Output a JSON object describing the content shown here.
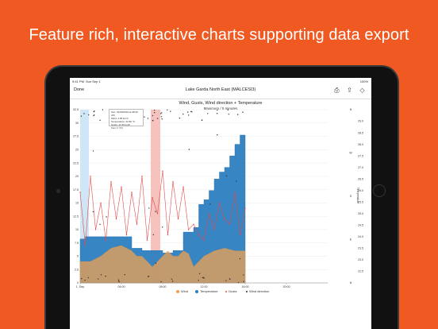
{
  "headline": "Feature rich, interactive charts supporting data export",
  "status": {
    "time": "9:41 PM",
    "date": "Sun Sep 1",
    "battery": "100%"
  },
  "nav": {
    "done_label": "Done",
    "title": "Lake Garda North East (MALCESI3)"
  },
  "chart": {
    "title": "Wind, Gusts, Wind direction + Temperature",
    "subtitle": "Maximum / 5 minutes"
  },
  "tooltip": {
    "time": "Sun, 01/09/2019 at 08:20 AM",
    "lines": [
      "Wind: 4.86 km/h",
      "Temperature: 22.80 °C",
      "Gusts: 11.56 km/h",
      "from 1° (N)"
    ]
  },
  "legend": {
    "items": [
      "Wind",
      "Temperature",
      "Gusts",
      "Wind direction"
    ]
  },
  "colors": {
    "wind": "#f0a050",
    "temperature": "#2c7fc0",
    "gusts": "#e34a4a",
    "direction": "#333333",
    "highlight_blue": "#cfe6f7",
    "highlight_red": "#f6c2bd",
    "brand": "#f05a22"
  },
  "chart_data": {
    "type": "line",
    "title": "Wind, Gusts, Wind direction + Temperature",
    "subtitle": "Maximum / 5 minutes",
    "x_ticks": [
      "1. Sep",
      "04:00",
      "08:00",
      "12:00",
      "16:00",
      "20:00"
    ],
    "y_left_ticks": [
      "0",
      "2.5",
      "5",
      "7.5",
      "10",
      "12.5",
      "15",
      "17.5",
      "20",
      "22.5",
      "25",
      "27.5",
      "30",
      "32.5"
    ],
    "y_dir_ticks": [
      "N",
      "E",
      "S",
      "W",
      "N"
    ],
    "y_right_ticks": [
      "22.5",
      "23.0",
      "23.5",
      "24.0",
      "24.5",
      "25.0",
      "25.5",
      "26.0",
      "26.5",
      "27.0",
      "27.5",
      "28.0",
      "28.5",
      "29.0"
    ],
    "y_right_label": "Temperature",
    "series": [
      {
        "name": "Wind",
        "x": [
          0,
          1,
          2,
          3,
          4,
          5,
          5.5,
          6,
          6.5,
          7,
          7.5,
          8,
          8.5,
          9,
          9.5,
          10,
          10.5,
          11,
          11.5,
          12,
          13,
          14,
          15,
          16
        ],
        "values": [
          4,
          4,
          5,
          6.5,
          7,
          6,
          5,
          5,
          4,
          3,
          4,
          5,
          6,
          5,
          5,
          6,
          5.5,
          3,
          4,
          5,
          6,
          6.5,
          6,
          6
        ]
      },
      {
        "name": "Temperature",
        "x": [
          0,
          0.5,
          1,
          2,
          3,
          4,
          5,
          6,
          7,
          8,
          9,
          10,
          11,
          11.5,
          12,
          12.5,
          13,
          13.5,
          14,
          14.5,
          15,
          15.5,
          16
        ],
        "values": [
          23.9,
          24.0,
          24.0,
          24.0,
          24.0,
          24.0,
          23.5,
          23.4,
          23.4,
          23.3,
          23.4,
          24.2,
          24.4,
          25.4,
          25.6,
          26.0,
          26.5,
          26.8,
          27.0,
          27.5,
          28.0,
          28.4,
          28.4
        ]
      },
      {
        "name": "Gusts",
        "x": [
          0,
          0.5,
          1,
          1.5,
          2,
          2.5,
          3,
          3.5,
          4,
          4.5,
          5,
          5.5,
          6,
          6.5,
          7,
          7.5,
          8,
          8.5,
          9,
          9.5,
          10,
          10.5,
          11,
          11.5,
          12,
          12.5,
          13,
          13.5,
          14,
          14.5,
          15,
          15.5,
          16
        ],
        "values": [
          17,
          7,
          20,
          10,
          15,
          8,
          19,
          12,
          18,
          9,
          17,
          11,
          20,
          8,
          16,
          13,
          21,
          9,
          19,
          12,
          18,
          10,
          11,
          9,
          8,
          13,
          10,
          15,
          12,
          11,
          17,
          9,
          14
        ]
      }
    ]
  }
}
